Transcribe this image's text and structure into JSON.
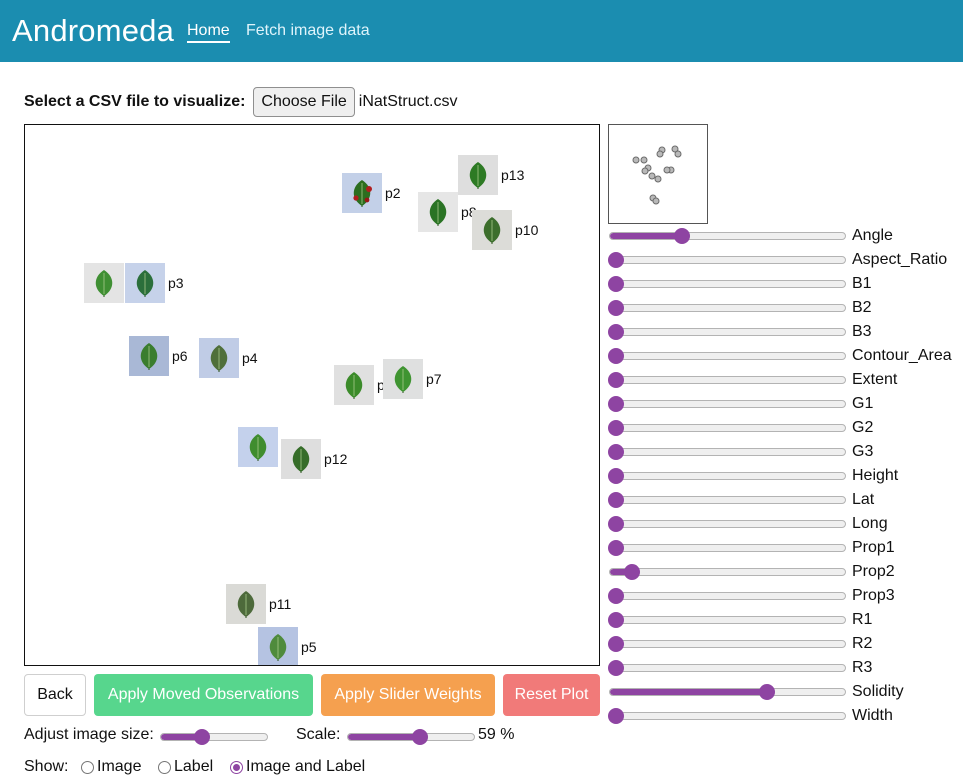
{
  "navbar": {
    "brand": "Andromeda",
    "links": [
      {
        "label": "Home",
        "active": true
      },
      {
        "label": "Fetch image data",
        "active": false
      }
    ]
  },
  "file": {
    "prompt": "Select a CSV file to visualize:",
    "button": "Choose File",
    "filename": "iNatStruct.csv"
  },
  "observations": [
    {
      "label": "p2",
      "bg": "#c3d0e8",
      "leaf": "#2c6e1f",
      "fruit": true
    },
    {
      "label": "p13",
      "bg": "#dedede",
      "leaf": "#2d7a24"
    },
    {
      "label": "p8",
      "bg": "#e6e6e6",
      "leaf": "#2a7324"
    },
    {
      "label": "p10",
      "bg": "#dcdcd8",
      "leaf": "#3c6e2c"
    },
    {
      "label": "p9",
      "bg": "#e4e4e4",
      "leaf": "#3f8f33"
    },
    {
      "label": "p3",
      "bg": "#c6d2ea",
      "leaf": "#2b6f3b"
    },
    {
      "label": "p6",
      "bg": "#a9b8d6",
      "leaf": "#3a7d2e"
    },
    {
      "label": "p4",
      "bg": "#c0cce6",
      "leaf": "#4f6f3a"
    },
    {
      "label": "p14",
      "bg": "#e0e0e0",
      "leaf": "#3b8b2a"
    },
    {
      "label": "p7",
      "bg": "#dfe0e0",
      "leaf": "#3f9431"
    },
    {
      "label": "p1",
      "bg": "#c4d1ec",
      "leaf": "#3f8d2f"
    },
    {
      "label": "p12",
      "bg": "#dedede",
      "leaf": "#366d29"
    },
    {
      "label": "p11",
      "bg": "#dadad6",
      "leaf": "#4d6a3b"
    },
    {
      "label": "p5",
      "bg": "#b5c3e2",
      "leaf": "#4f8b3c"
    }
  ],
  "weights": [
    {
      "label": "Angle",
      "value": 0.29
    },
    {
      "label": "Aspect_Ratio",
      "value": 0.0
    },
    {
      "label": "B1",
      "value": 0.0
    },
    {
      "label": "B2",
      "value": 0.0
    },
    {
      "label": "B3",
      "value": 0.0
    },
    {
      "label": "Contour_Area",
      "value": 0.0
    },
    {
      "label": "Extent",
      "value": 0.0
    },
    {
      "label": "G1",
      "value": 0.0
    },
    {
      "label": "G2",
      "value": 0.0
    },
    {
      "label": "G3",
      "value": 0.0
    },
    {
      "label": "Height",
      "value": 0.0
    },
    {
      "label": "Lat",
      "value": 0.0
    },
    {
      "label": "Long",
      "value": 0.0
    },
    {
      "label": "Prop1",
      "value": 0.0
    },
    {
      "label": "Prop2",
      "value": 0.07
    },
    {
      "label": "Prop3",
      "value": 0.0
    },
    {
      "label": "R1",
      "value": 0.0
    },
    {
      "label": "R2",
      "value": 0.0
    },
    {
      "label": "R3",
      "value": 0.0
    },
    {
      "label": "Solidity",
      "value": 0.66
    },
    {
      "label": "Width",
      "value": 0.0
    }
  ],
  "buttons": {
    "back": "Back",
    "apply_moved": "Apply Moved Observations",
    "apply_slider": "Apply Slider Weights",
    "reset": "Reset Plot"
  },
  "controls": {
    "image_size_label": "Adjust image size:",
    "image_size_value": 0.38,
    "scale_label": "Scale:",
    "scale_value": 0.59,
    "scale_text": "59 %"
  },
  "show": {
    "label": "Show:",
    "options": [
      {
        "label": "Image",
        "checked": false
      },
      {
        "label": "Label",
        "checked": false
      },
      {
        "label": "Image and Label",
        "checked": true
      }
    ]
  },
  "colors": {
    "navbar": "#1b8db0",
    "accent": "#8e44a2",
    "apply_moved": "#57d68d",
    "apply_slider": "#f5a04f",
    "reset": "#f17a79"
  }
}
